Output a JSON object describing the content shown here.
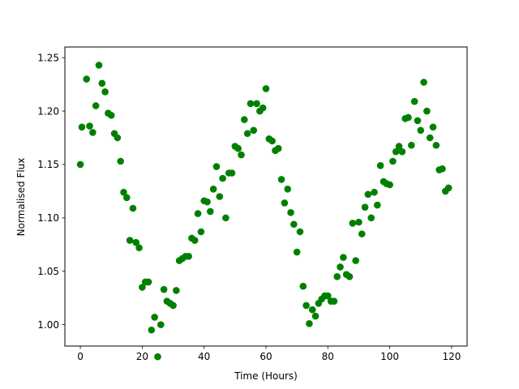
{
  "chart_data": {
    "type": "scatter",
    "title": "",
    "xlabel": "Time (Hours)",
    "ylabel": "Normalised Flux",
    "xlim": [
      -5,
      125
    ],
    "ylim": [
      0.98,
      1.26
    ],
    "xticks": [
      0,
      20,
      40,
      60,
      80,
      100,
      120
    ],
    "xtick_labels": [
      "0",
      "20",
      "40",
      "60",
      "80",
      "100",
      "120"
    ],
    "yticks": [
      1.0,
      1.05,
      1.1,
      1.15,
      1.2,
      1.25
    ],
    "ytick_labels": [
      "1.00",
      "1.05",
      "1.10",
      "1.15",
      "1.20",
      "1.25"
    ],
    "grid": false,
    "legend": false,
    "marker_color": "#008000",
    "series": [
      {
        "points": [
          [
            0,
            1.15
          ],
          [
            0.5,
            1.185
          ],
          [
            2,
            1.23
          ],
          [
            3,
            1.186
          ],
          [
            4,
            1.18
          ],
          [
            5,
            1.205
          ],
          [
            6,
            1.243
          ],
          [
            7,
            1.226
          ],
          [
            8,
            1.218
          ],
          [
            9,
            1.198
          ],
          [
            10,
            1.196
          ],
          [
            11,
            1.179
          ],
          [
            12,
            1.175
          ],
          [
            13,
            1.153
          ],
          [
            14,
            1.124
          ],
          [
            15,
            1.119
          ],
          [
            16,
            1.079
          ],
          [
            17,
            1.109
          ],
          [
            18,
            1.077
          ],
          [
            19,
            1.072
          ],
          [
            20,
            1.035
          ],
          [
            21,
            1.04
          ],
          [
            22,
            1.04
          ],
          [
            23,
            0.995
          ],
          [
            24,
            1.007
          ],
          [
            25,
            0.97
          ],
          [
            26,
            1.0
          ],
          [
            27,
            1.033
          ],
          [
            28,
            1.022
          ],
          [
            29,
            1.02
          ],
          [
            30,
            1.018
          ],
          [
            31,
            1.032
          ],
          [
            32,
            1.06
          ],
          [
            33,
            1.062
          ],
          [
            34,
            1.064
          ],
          [
            35,
            1.064
          ],
          [
            36,
            1.081
          ],
          [
            37,
            1.079
          ],
          [
            38,
            1.104
          ],
          [
            39,
            1.087
          ],
          [
            40,
            1.116
          ],
          [
            41,
            1.115
          ],
          [
            42,
            1.106
          ],
          [
            43,
            1.127
          ],
          [
            44,
            1.148
          ],
          [
            45,
            1.12
          ],
          [
            46,
            1.137
          ],
          [
            47,
            1.1
          ],
          [
            48,
            1.142
          ],
          [
            49,
            1.142
          ],
          [
            50,
            1.167
          ],
          [
            51,
            1.165
          ],
          [
            52,
            1.159
          ],
          [
            53,
            1.192
          ],
          [
            54,
            1.179
          ],
          [
            55,
            1.207
          ],
          [
            56,
            1.182
          ],
          [
            57,
            1.207
          ],
          [
            58,
            1.2
          ],
          [
            59,
            1.203
          ],
          [
            60,
            1.221
          ],
          [
            61,
            1.174
          ],
          [
            62,
            1.172
          ],
          [
            63,
            1.163
          ],
          [
            64,
            1.165
          ],
          [
            65,
            1.136
          ],
          [
            66,
            1.114
          ],
          [
            67,
            1.127
          ],
          [
            68,
            1.105
          ],
          [
            69,
            1.094
          ],
          [
            70,
            1.068
          ],
          [
            71,
            1.087
          ],
          [
            72,
            1.036
          ],
          [
            73,
            1.018
          ],
          [
            74,
            1.001
          ],
          [
            75,
            1.014
          ],
          [
            76,
            1.008
          ],
          [
            77,
            1.02
          ],
          [
            78,
            1.024
          ],
          [
            79,
            1.027
          ],
          [
            80,
            1.027
          ],
          [
            81,
            1.022
          ],
          [
            82,
            1.022
          ],
          [
            83,
            1.045
          ],
          [
            84,
            1.054
          ],
          [
            85,
            1.063
          ],
          [
            86,
            1.047
          ],
          [
            87,
            1.045
          ],
          [
            88,
            1.095
          ],
          [
            89,
            1.06
          ],
          [
            90,
            1.096
          ],
          [
            91,
            1.085
          ],
          [
            92,
            1.11
          ],
          [
            93,
            1.122
          ],
          [
            94,
            1.1
          ],
          [
            95,
            1.124
          ],
          [
            96,
            1.112
          ],
          [
            97,
            1.149
          ],
          [
            98,
            1.134
          ],
          [
            99,
            1.132
          ],
          [
            100,
            1.131
          ],
          [
            101,
            1.153
          ],
          [
            102,
            1.162
          ],
          [
            103,
            1.167
          ],
          [
            104,
            1.162
          ],
          [
            105,
            1.193
          ],
          [
            106,
            1.194
          ],
          [
            107,
            1.168
          ],
          [
            108,
            1.209
          ],
          [
            109,
            1.191
          ],
          [
            110,
            1.182
          ],
          [
            111,
            1.227
          ],
          [
            112,
            1.2
          ],
          [
            113,
            1.175
          ],
          [
            114,
            1.185
          ],
          [
            115,
            1.168
          ],
          [
            116,
            1.145
          ],
          [
            117,
            1.146
          ],
          [
            118,
            1.125
          ],
          [
            119,
            1.128
          ]
        ]
      }
    ]
  }
}
